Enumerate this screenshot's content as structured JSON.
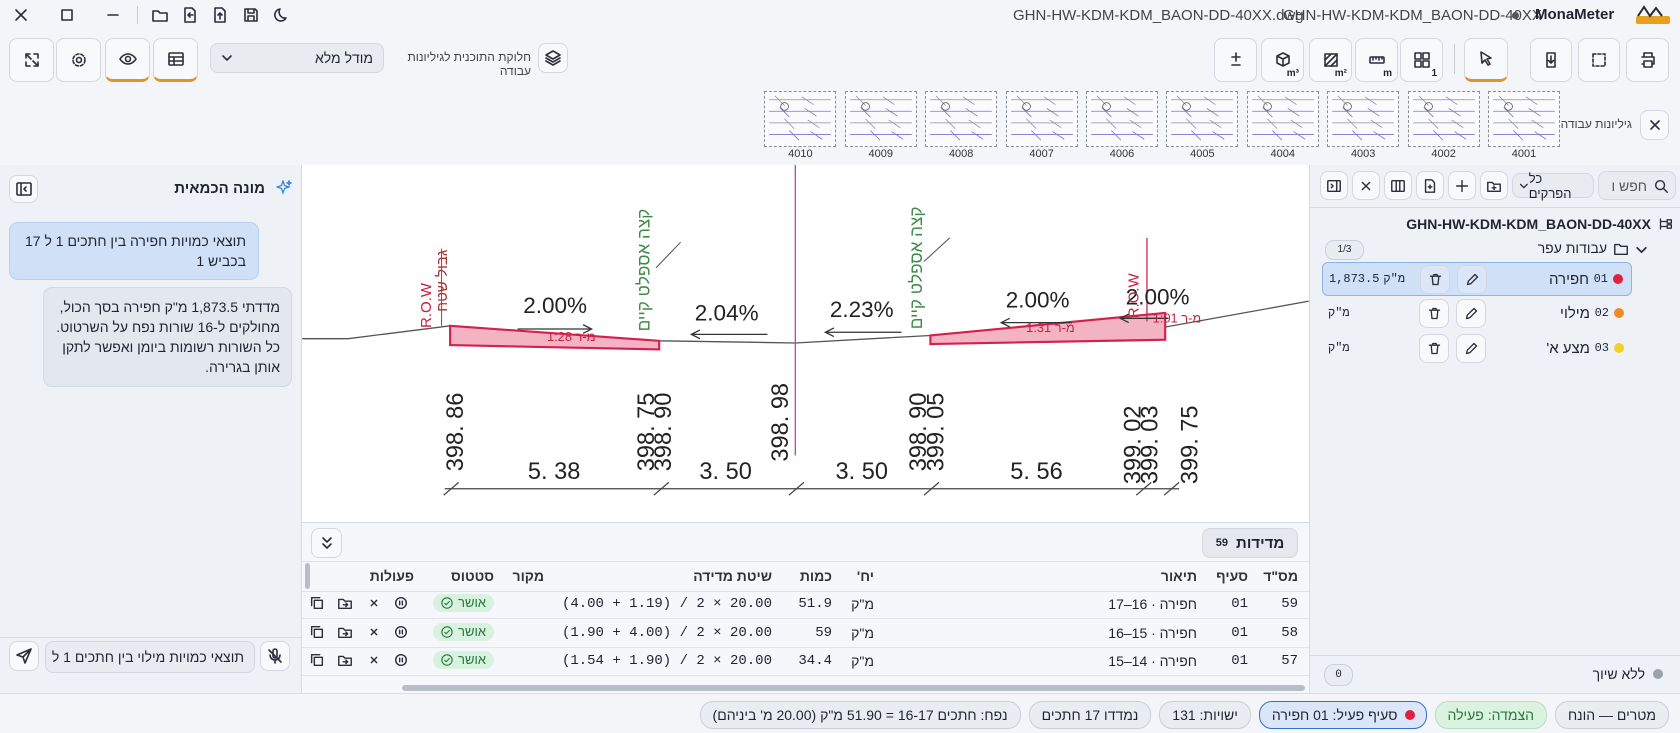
{
  "title_bar": {
    "file_name": "GHN-HW-KDM-KDM_BAON-DD-40XX.dwg",
    "doc_name": "GHN-HW-KDM-KDM_BAON-DD-40XX",
    "app_name": "MonaMeter"
  },
  "toolbar": {
    "model_select": "מודל מלא",
    "split_label": "חלוקת התוכנית לגיליונות עבודה",
    "tool_badges": [
      "m³",
      "m²",
      "m",
      "1"
    ]
  },
  "sheets": {
    "title": "גיליונות עבודה",
    "items": [
      "4001",
      "4002",
      "4003",
      "4004",
      "4005",
      "4006",
      "4007",
      "4008",
      "4009",
      "4010"
    ]
  },
  "chat": {
    "title": "מונה הכמאית",
    "messages": [
      {
        "role": "user",
        "text": "תוצאי כמויות חפירה בין חתכים 1 ל 17 בכביש 1"
      },
      {
        "role": "assistant",
        "text": "מדדתי 1,873.5 מ\"ק חפירה בסך הכול, מחולקים ל-16 שורות נפח על השרטוט. כל השורות רשומות ביומן ואפשר לתקן אותן בגרירה."
      }
    ],
    "input": "תוצאי כמויות מילוי בין חתכים 1 ל"
  },
  "drawing": {
    "slopes": [
      "2.00%",
      "2.04%",
      "2.23%",
      "2.00%",
      "2.00%"
    ],
    "ratios": [
      "מ-ר 1:28",
      "מ-ר 1:31",
      "מ-ר 1:01"
    ],
    "elevations": [
      "398. 86",
      "398. 75",
      "398. 90",
      "398. 98",
      "398. 90",
      "399. 05",
      "399. 02",
      "399. 03",
      "399. 75"
    ],
    "widths": [
      "5. 38",
      "3. 50",
      "3. 50",
      "5. 56"
    ],
    "edge_label": "קצה אספלט קיים",
    "row_label": "R.O.W",
    "boundary_label": "גבול שטח"
  },
  "measurements": {
    "title": "מדידות",
    "count": 59,
    "columns": [
      "מס\"ד",
      "סעיף",
      "תיאור",
      "יח'",
      "כמות",
      "שיטת מדידה",
      "מקור",
      "סטטוס",
      "פעולות"
    ],
    "rows": [
      {
        "id": 59,
        "section": "01",
        "description": "חפירה · 16–17",
        "unit": "מ\"ק",
        "quantity": 51.9,
        "method": "(4.00 + 1.19) / 2 × 20.00",
        "status": "אושר"
      },
      {
        "id": 58,
        "section": "01",
        "description": "חפירה · 15–16",
        "unit": "מ\"ק",
        "quantity": 59,
        "method": "(1.90 + 4.00) / 2 × 20.00",
        "status": "אושר"
      },
      {
        "id": 57,
        "section": "01",
        "description": "חפירה · 14–15",
        "unit": "מ\"ק",
        "quantity": 34.4,
        "method": "(1.54 + 1.90) / 2 × 20.00",
        "status": "אושר"
      }
    ]
  },
  "sidebar": {
    "search": "חפש ו",
    "filter": "כל הפרקים",
    "project": "GHN-HW-KDM-KDM_BAON-DD-40XX",
    "folder": "עבודות עפר",
    "folder_count": "1/3",
    "items": [
      {
        "code": "01",
        "name": "חפירה",
        "quantity": "1,873.5",
        "unit": "מ\"ק",
        "color": "#e0203f"
      },
      {
        "code": "02",
        "name": "מילוי",
        "unit": "מ\"ק",
        "color": "#f08a24"
      },
      {
        "code": "03",
        "name": "מצע א'",
        "unit": "מ\"ק",
        "color": "#f2d024"
      }
    ],
    "unassigned": "ללא שיוך",
    "unassigned_count": "0"
  },
  "status_bar": [
    "מטרים — הונח",
    "הצמדה: פעילה",
    "סעיף פעיל: 01 חפירה",
    "ישויות: 131",
    "נמדדו 17 חתכים",
    "נפח: חתכים 16-17 = 51.90 מ\"ק (20.00 מ' ביניהם)"
  ]
}
